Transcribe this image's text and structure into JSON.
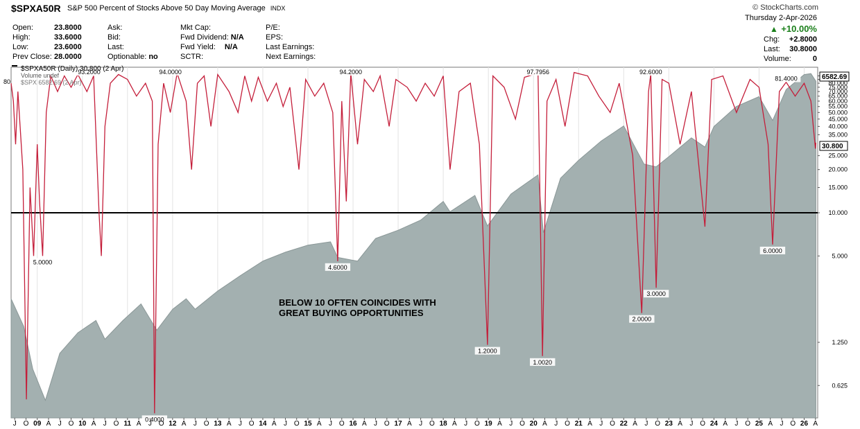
{
  "header": {
    "symbol": "$SPXA50R",
    "description": "S&P 500 Percent of Stocks Above 50 Day Moving Average",
    "exchange": "INDX",
    "brand": "© StockCharts.com",
    "date_line": "Thursday  2-Apr-2026",
    "pct_change": "+10.00%",
    "chg_label": "Chg:",
    "chg_value": "+2.8000",
    "last_label": "Last:",
    "last_value": "30.8000",
    "volume_label": "Volume:",
    "volume_value": "0"
  },
  "quote": {
    "open_label": "Open:",
    "open": "23.8000",
    "high_label": "High:",
    "high": "33.6000",
    "low_label": "Low:",
    "low": "23.6000",
    "prev_label": "Prev Close:",
    "prev": "28.0000",
    "ask_label": "Ask:",
    "bid_label": "Bid:",
    "last_label": "Last:",
    "optionable_label": "Optionable:",
    "optionable": "no",
    "mktcap_label": "Mkt Cap:",
    "fwddiv_label": "Fwd Dividend:",
    "fwddiv": "N/A",
    "fwdyield_label": "Fwd Yield:",
    "fwdyield": "N/A",
    "sctr_label": "SCTR:",
    "pe_label": "P/E:",
    "eps_label": "EPS:",
    "lastearn_label": "Last Earnings:",
    "nextearn_label": "Next Earnings:"
  },
  "legend": {
    "line1": "$SPXA50R (Daily) 30.800 (2 Apr)",
    "line2": "Volume undef",
    "line3": "$SPX 6582.69 (2 Apr)"
  },
  "colors": {
    "breadth_line": "#c41e3a",
    "spx_area": "#a3b0b0",
    "spx_area_edge": "#8a9797",
    "reference_line": "#000000"
  },
  "chart_data": {
    "type": "line",
    "y_scale": "log",
    "y_ticks": [
      "0.625",
      "1.250",
      "5.000",
      "10.000",
      "15.000",
      "20.000",
      "25.000",
      "35.000",
      "40.000",
      "45.000",
      "50.000",
      "55.000",
      "60.000",
      "65.000",
      "70.000",
      "75.000",
      "80.000",
      "85.000",
      "90.000",
      "95.000"
    ],
    "last_price_label": "30.800",
    "spx_price_label": "6582.69",
    "left_edge_label": "80",
    "reference_line_value": 10,
    "x_ticks": [
      "J",
      "O",
      "09",
      "A",
      "J",
      "O",
      "10",
      "A",
      "J",
      "O",
      "11",
      "A",
      "J",
      "O",
      "12",
      "A",
      "J",
      "O",
      "13",
      "A",
      "J",
      "O",
      "14",
      "A",
      "J",
      "O",
      "15",
      "A",
      "J",
      "O",
      "16",
      "A",
      "J",
      "O",
      "17",
      "A",
      "J",
      "O",
      "18",
      "A",
      "J",
      "O",
      "19",
      "A",
      "J",
      "O",
      "20",
      "A",
      "J",
      "O",
      "21",
      "A",
      "J",
      "O",
      "22",
      "A",
      "J",
      "O",
      "23",
      "A",
      "J",
      "O",
      "24",
      "A",
      "J",
      "O",
      "25",
      "A",
      "J",
      "O",
      "26",
      "A"
    ],
    "year_ticks": [
      "09",
      "10",
      "11",
      "12",
      "13",
      "14",
      "15",
      "16",
      "17",
      "18",
      "19",
      "20",
      "21",
      "22",
      "23",
      "24",
      "25",
      "26"
    ],
    "annotation": "BELOW 10 OFTEN COINCIDES WITH\nGREAT BUYING OPPORTUNITIES",
    "annotation_line1": "BELOW 10 OFTEN COINCIDES WITH",
    "annotation_line2": "GREAT BUYING OPPORTUNITIES",
    "series": [
      {
        "name": "$SPXA50R",
        "points": [
          {
            "x": 2008.42,
            "y": 80
          },
          {
            "x": 2008.47,
            "y": 60
          },
          {
            "x": 2008.52,
            "y": 30
          },
          {
            "x": 2008.57,
            "y": 70
          },
          {
            "x": 2008.62,
            "y": 40
          },
          {
            "x": 2008.68,
            "y": 20
          },
          {
            "x": 2008.76,
            "y": 0.5
          },
          {
            "x": 2008.84,
            "y": 15
          },
          {
            "x": 2008.92,
            "y": 5
          },
          {
            "x": 2009.0,
            "y": 30
          },
          {
            "x": 2009.05,
            "y": 12
          },
          {
            "x": 2009.12,
            "y": 5
          },
          {
            "x": 2009.2,
            "y": 50
          },
          {
            "x": 2009.3,
            "y": 90
          },
          {
            "x": 2009.45,
            "y": 70
          },
          {
            "x": 2009.6,
            "y": 90
          },
          {
            "x": 2009.75,
            "y": 75
          },
          {
            "x": 2009.9,
            "y": 92
          },
          {
            "x": 2010.1,
            "y": 70
          },
          {
            "x": 2010.25,
            "y": 90
          },
          {
            "x": 2010.37,
            "y": 10
          },
          {
            "x": 2010.42,
            "y": 5
          },
          {
            "x": 2010.5,
            "y": 40
          },
          {
            "x": 2010.62,
            "y": 80
          },
          {
            "x": 2010.8,
            "y": 92
          },
          {
            "x": 2011.0,
            "y": 85
          },
          {
            "x": 2011.2,
            "y": 65
          },
          {
            "x": 2011.4,
            "y": 80
          },
          {
            "x": 2011.55,
            "y": 60
          },
          {
            "x": 2011.6,
            "y": 0.4
          },
          {
            "x": 2011.68,
            "y": 30
          },
          {
            "x": 2011.8,
            "y": 80
          },
          {
            "x": 2011.95,
            "y": 50
          },
          {
            "x": 2012.1,
            "y": 94
          },
          {
            "x": 2012.3,
            "y": 60
          },
          {
            "x": 2012.42,
            "y": 20
          },
          {
            "x": 2012.55,
            "y": 80
          },
          {
            "x": 2012.7,
            "y": 90
          },
          {
            "x": 2012.85,
            "y": 40
          },
          {
            "x": 2013.0,
            "y": 92
          },
          {
            "x": 2013.25,
            "y": 70
          },
          {
            "x": 2013.45,
            "y": 50
          },
          {
            "x": 2013.6,
            "y": 90
          },
          {
            "x": 2013.75,
            "y": 60
          },
          {
            "x": 2013.9,
            "y": 88
          },
          {
            "x": 2014.1,
            "y": 60
          },
          {
            "x": 2014.3,
            "y": 80
          },
          {
            "x": 2014.45,
            "y": 55
          },
          {
            "x": 2014.6,
            "y": 75
          },
          {
            "x": 2014.8,
            "y": 20
          },
          {
            "x": 2014.95,
            "y": 85
          },
          {
            "x": 2015.15,
            "y": 65
          },
          {
            "x": 2015.35,
            "y": 80
          },
          {
            "x": 2015.55,
            "y": 50
          },
          {
            "x": 2015.66,
            "y": 4.6
          },
          {
            "x": 2015.75,
            "y": 60
          },
          {
            "x": 2015.85,
            "y": 12
          },
          {
            "x": 2015.95,
            "y": 94.2
          },
          {
            "x": 2016.1,
            "y": 30
          },
          {
            "x": 2016.25,
            "y": 85
          },
          {
            "x": 2016.45,
            "y": 70
          },
          {
            "x": 2016.6,
            "y": 90
          },
          {
            "x": 2016.8,
            "y": 40
          },
          {
            "x": 2016.95,
            "y": 85
          },
          {
            "x": 2017.2,
            "y": 75
          },
          {
            "x": 2017.4,
            "y": 60
          },
          {
            "x": 2017.6,
            "y": 80
          },
          {
            "x": 2017.8,
            "y": 65
          },
          {
            "x": 2018.0,
            "y": 90
          },
          {
            "x": 2018.15,
            "y": 20
          },
          {
            "x": 2018.35,
            "y": 70
          },
          {
            "x": 2018.6,
            "y": 80
          },
          {
            "x": 2018.8,
            "y": 30
          },
          {
            "x": 2018.98,
            "y": 1.2
          },
          {
            "x": 2019.1,
            "y": 90
          },
          {
            "x": 2019.35,
            "y": 75
          },
          {
            "x": 2019.6,
            "y": 45
          },
          {
            "x": 2019.8,
            "y": 88
          },
          {
            "x": 2020.0,
            "y": 92
          },
          {
            "x": 2020.1,
            "y": 97.8
          },
          {
            "x": 2020.2,
            "y": 1.002
          },
          {
            "x": 2020.3,
            "y": 60
          },
          {
            "x": 2020.5,
            "y": 85
          },
          {
            "x": 2020.7,
            "y": 40
          },
          {
            "x": 2020.9,
            "y": 95
          },
          {
            "x": 2021.2,
            "y": 90
          },
          {
            "x": 2021.45,
            "y": 65
          },
          {
            "x": 2021.7,
            "y": 50
          },
          {
            "x": 2021.9,
            "y": 80
          },
          {
            "x": 2022.2,
            "y": 25
          },
          {
            "x": 2022.4,
            "y": 2.0
          },
          {
            "x": 2022.55,
            "y": 70
          },
          {
            "x": 2022.6,
            "y": 92.6
          },
          {
            "x": 2022.72,
            "y": 3.0
          },
          {
            "x": 2022.85,
            "y": 85
          },
          {
            "x": 2023.0,
            "y": 80
          },
          {
            "x": 2023.25,
            "y": 30
          },
          {
            "x": 2023.5,
            "y": 70
          },
          {
            "x": 2023.8,
            "y": 8
          },
          {
            "x": 2023.95,
            "y": 85
          },
          {
            "x": 2024.2,
            "y": 90
          },
          {
            "x": 2024.5,
            "y": 50
          },
          {
            "x": 2024.8,
            "y": 85
          },
          {
            "x": 2025.0,
            "y": 75
          },
          {
            "x": 2025.2,
            "y": 30
          },
          {
            "x": 2025.3,
            "y": 6.0
          },
          {
            "x": 2025.45,
            "y": 70
          },
          {
            "x": 2025.6,
            "y": 81.4
          },
          {
            "x": 2025.8,
            "y": 65
          },
          {
            "x": 2026.0,
            "y": 80
          },
          {
            "x": 2026.15,
            "y": 60
          },
          {
            "x": 2026.25,
            "y": 28
          },
          {
            "x": 2026.26,
            "y": 30.8
          }
        ]
      },
      {
        "name": "$SPX",
        "points": [
          {
            "x": 2008.42,
            "y": 1400
          },
          {
            "x": 2008.7,
            "y": 1150
          },
          {
            "x": 2008.9,
            "y": 850
          },
          {
            "x": 2009.18,
            "y": 680
          },
          {
            "x": 2009.5,
            "y": 950
          },
          {
            "x": 2009.9,
            "y": 1100
          },
          {
            "x": 2010.3,
            "y": 1200
          },
          {
            "x": 2010.5,
            "y": 1050
          },
          {
            "x": 2010.9,
            "y": 1200
          },
          {
            "x": 2011.3,
            "y": 1350
          },
          {
            "x": 2011.65,
            "y": 1120
          },
          {
            "x": 2012.0,
            "y": 1300
          },
          {
            "x": 2012.3,
            "y": 1400
          },
          {
            "x": 2012.5,
            "y": 1300
          },
          {
            "x": 2013.0,
            "y": 1480
          },
          {
            "x": 2013.5,
            "y": 1650
          },
          {
            "x": 2014.0,
            "y": 1830
          },
          {
            "x": 2014.5,
            "y": 1950
          },
          {
            "x": 2015.0,
            "y": 2050
          },
          {
            "x": 2015.5,
            "y": 2100
          },
          {
            "x": 2015.66,
            "y": 1880
          },
          {
            "x": 2016.1,
            "y": 1830
          },
          {
            "x": 2016.5,
            "y": 2150
          },
          {
            "x": 2017.0,
            "y": 2280
          },
          {
            "x": 2017.5,
            "y": 2450
          },
          {
            "x": 2018.0,
            "y": 2800
          },
          {
            "x": 2018.15,
            "y": 2600
          },
          {
            "x": 2018.7,
            "y": 2920
          },
          {
            "x": 2018.98,
            "y": 2350
          },
          {
            "x": 2019.5,
            "y": 2950
          },
          {
            "x": 2020.1,
            "y": 3380
          },
          {
            "x": 2020.22,
            "y": 2240
          },
          {
            "x": 2020.6,
            "y": 3300
          },
          {
            "x": 2021.0,
            "y": 3750
          },
          {
            "x": 2021.5,
            "y": 4300
          },
          {
            "x": 2022.0,
            "y": 4790
          },
          {
            "x": 2022.45,
            "y": 3650
          },
          {
            "x": 2022.72,
            "y": 3580
          },
          {
            "x": 2023.0,
            "y": 3850
          },
          {
            "x": 2023.5,
            "y": 4400
          },
          {
            "x": 2023.8,
            "y": 4120
          },
          {
            "x": 2024.0,
            "y": 4770
          },
          {
            "x": 2024.5,
            "y": 5500
          },
          {
            "x": 2025.0,
            "y": 5900
          },
          {
            "x": 2025.3,
            "y": 4980
          },
          {
            "x": 2025.6,
            "y": 6200
          },
          {
            "x": 2026.0,
            "y": 6900
          },
          {
            "x": 2026.15,
            "y": 6950
          },
          {
            "x": 2026.26,
            "y": 6582.69
          }
        ]
      }
    ],
    "data_labels": [
      {
        "text": "93.2000",
        "x": 2010.15,
        "y": 93.2
      },
      {
        "text": "94.0000",
        "x": 2011.95,
        "y": 94.0
      },
      {
        "text": "94.2000",
        "x": 2015.95,
        "y": 94.2
      },
      {
        "text": "97.7956",
        "x": 2020.1,
        "y": 97.8
      },
      {
        "text": "92.6000",
        "x": 2022.6,
        "y": 92.6
      },
      {
        "text": "81.4000",
        "x": 2025.6,
        "y": 81.4
      },
      {
        "text": "5.0000",
        "x": 2009.12,
        "y": 5.0
      },
      {
        "text": "4.6000",
        "x": 2015.66,
        "y": 4.6
      },
      {
        "text": "0.4000",
        "x": 2011.6,
        "y": 0.4
      },
      {
        "text": "1.2000",
        "x": 2018.98,
        "y": 1.2
      },
      {
        "text": "1.0020",
        "x": 2020.2,
        "y": 1.002
      },
      {
        "text": "2.0000",
        "x": 2022.4,
        "y": 2.0
      },
      {
        "text": "3.0000",
        "x": 2022.72,
        "y": 3.0
      },
      {
        "text": "6.0000",
        "x": 2025.3,
        "y": 6.0
      }
    ]
  }
}
